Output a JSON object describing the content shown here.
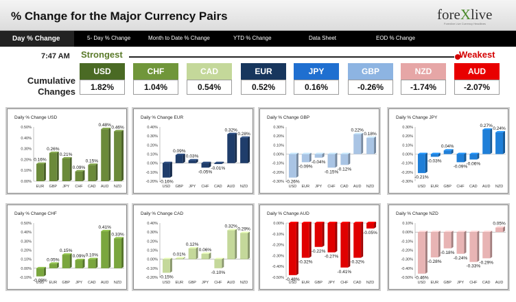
{
  "header": {
    "title": "% Change for the Major Currency Pairs",
    "logo_text_a": "fore",
    "logo_text_x": "X",
    "logo_text_b": "live",
    "logo_sub": "Forexlive Live Currency Headlines"
  },
  "nav": {
    "items": [
      "Day % Change",
      "5- Day % Change",
      "Month to Date % Change",
      "YTD % Change",
      "Data Sheet",
      "EOD % Change"
    ]
  },
  "summary": {
    "time": "7:47 AM",
    "strongest_label": "Strongest",
    "weakest_label": "Weakest",
    "cumulative_label_line1": "Cumulative",
    "cumulative_label_line2": "Changes",
    "currencies": [
      {
        "code": "USD",
        "value": "1.82%",
        "color": "#4a6a24"
      },
      {
        "code": "CHF",
        "value": "1.04%",
        "color": "#70963a"
      },
      {
        "code": "CAD",
        "value": "0.54%",
        "color": "#c4d89a"
      },
      {
        "code": "EUR",
        "value": "0.52%",
        "color": "#17365d"
      },
      {
        "code": "JPY",
        "value": "0.16%",
        "color": "#1f6fd0"
      },
      {
        "code": "GBP",
        "value": "-0.26%",
        "color": "#8db4e2"
      },
      {
        "code": "NZD",
        "value": "-1.74%",
        "color": "#e6a6a6"
      },
      {
        "code": "AUD",
        "value": "-2.07%",
        "color": "#e80000"
      }
    ]
  },
  "chart_data": [
    {
      "type": "bar",
      "title": "Daily % Change USD",
      "categories": [
        "EUR",
        "GBP",
        "JPY",
        "CHF",
        "CAD",
        "AUD",
        "NZD"
      ],
      "values": [
        0.16,
        0.26,
        0.21,
        0.09,
        0.15,
        0.48,
        0.46
      ],
      "labels": [
        "0.16%",
        "0.26%",
        "0.21%",
        "0.09%",
        "0.15%",
        "0.48%",
        "0.46%"
      ],
      "ylim": [
        0,
        0.5
      ],
      "ticks": [
        "0.50%",
        "0.40%",
        "0.30%",
        "0.20%",
        "0.10%",
        "0.00%"
      ],
      "color": "#6b8a3a"
    },
    {
      "type": "bar",
      "title": "Daily % Change EUR",
      "categories": [
        "USD",
        "GBP",
        "JPY",
        "CHF",
        "CAD",
        "AUD",
        "NZD"
      ],
      "values": [
        -0.16,
        0.09,
        0.03,
        -0.05,
        -0.01,
        0.32,
        0.28
      ],
      "labels": [
        "-0.16%",
        "0.09%",
        "0.03%",
        "-0.05%",
        "-0.01%",
        "0.32%",
        "0.28%"
      ],
      "ylim": [
        -0.2,
        0.4
      ],
      "ticks": [
        "0.40%",
        "0.30%",
        "0.20%",
        "0.10%",
        "0.00%",
        "-0.10%",
        "-0.20%"
      ],
      "color": "#1f3d6b"
    },
    {
      "type": "bar",
      "title": "Daily % Change GBP",
      "categories": [
        "USD",
        "EUR",
        "JPY",
        "CHF",
        "CAD",
        "AUD",
        "NZD"
      ],
      "values": [
        -0.26,
        -0.09,
        -0.04,
        -0.15,
        -0.12,
        0.22,
        0.18
      ],
      "labels": [
        "-0.26%",
        "-0.09%",
        "-0.04%",
        "-0.15%",
        "-0.12%",
        "0.22%",
        "0.18%"
      ],
      "ylim": [
        -0.3,
        0.3
      ],
      "ticks": [
        "0.30%",
        "0.20%",
        "0.10%",
        "0.00%",
        "-0.10%",
        "-0.20%",
        "-0.30%"
      ],
      "color": "#a9c4e4"
    },
    {
      "type": "bar",
      "title": "Daily % Change JPY",
      "categories": [
        "USD",
        "EUR",
        "GBP",
        "CHF",
        "CAD",
        "AUD",
        "NZD"
      ],
      "values": [
        -0.21,
        -0.03,
        0.04,
        -0.09,
        -0.06,
        0.27,
        0.24
      ],
      "labels": [
        "-0.21%",
        "-0.03%",
        "0.04%",
        "-0.09%",
        "-0.06%",
        "0.27%",
        "0.24%"
      ],
      "ylim": [
        -0.3,
        0.3
      ],
      "ticks": [
        "0.30%",
        "0.20%",
        "0.10%",
        "0.00%",
        "-0.10%",
        "-0.20%",
        "-0.30%"
      ],
      "color": "#1f7fd8"
    },
    {
      "type": "bar",
      "title": "Daily % Change CHF",
      "categories": [
        "USD",
        "EUR",
        "GBP",
        "JPY",
        "CAD",
        "AUD",
        "NZD"
      ],
      "values": [
        -0.09,
        0.05,
        0.15,
        0.09,
        0.1,
        0.41,
        0.33
      ],
      "labels": [
        "-0.09%",
        "0.05%",
        "0.15%",
        "0.09%",
        "0.10%",
        "0.41%",
        "0.33%"
      ],
      "ylim": [
        -0.1,
        0.5
      ],
      "ticks": [
        "0.50%",
        "0.40%",
        "0.30%",
        "0.20%",
        "0.10%",
        "0.00%",
        "-0.10%"
      ],
      "color": "#7aa63e"
    },
    {
      "type": "bar",
      "title": "Daily % Change CAD",
      "categories": [
        "USD",
        "EUR",
        "GBP",
        "JPY",
        "CHF",
        "AUD",
        "NZD"
      ],
      "values": [
        -0.15,
        0.01,
        0.12,
        0.06,
        -0.1,
        0.32,
        0.29
      ],
      "labels": [
        "-0.15%",
        "0.01%",
        "0.12%",
        "0.06%",
        "-0.10%",
        "0.32%",
        "0.29%"
      ],
      "ylim": [
        -0.2,
        0.4
      ],
      "ticks": [
        "0.40%",
        "0.30%",
        "0.20%",
        "0.10%",
        "0.00%",
        "-0.10%",
        "-0.20%"
      ],
      "color": "#c4d89a"
    },
    {
      "type": "bar",
      "title": "Daily % Change AUD",
      "categories": [
        "USD",
        "EUR",
        "GBP",
        "JPY",
        "CHF",
        "CAD",
        "NZD"
      ],
      "values": [
        -0.48,
        -0.32,
        -0.22,
        -0.27,
        -0.41,
        -0.32,
        -0.05
      ],
      "labels": [
        "-0.48%",
        "-0.32%",
        "-0.22%",
        "-0.27%",
        "-0.41%",
        "-0.32%",
        "-0.05%"
      ],
      "ylim": [
        -0.5,
        0
      ],
      "ticks": [
        "0.00%",
        "-0.10%",
        "-0.20%",
        "-0.30%",
        "-0.40%",
        "-0.50%"
      ],
      "color": "#e00000"
    },
    {
      "type": "bar",
      "title": "Daily % Change NZD",
      "categories": [
        "USD",
        "EUR",
        "GBP",
        "JPY",
        "CHF",
        "CAD",
        "AUD"
      ],
      "values": [
        -0.46,
        -0.28,
        -0.18,
        -0.24,
        -0.33,
        -0.29,
        0.05
      ],
      "labels": [
        "-0.46%",
        "-0.28%",
        "-0.18%",
        "-0.24%",
        "-0.33%",
        "-0.29%",
        "0.05%"
      ],
      "ylim": [
        -0.5,
        0.1
      ],
      "ticks": [
        "0.10%",
        "0.00%",
        "-0.10%",
        "-0.20%",
        "-0.30%",
        "-0.40%",
        "-0.50%"
      ],
      "color": "#e8b4b4"
    }
  ]
}
